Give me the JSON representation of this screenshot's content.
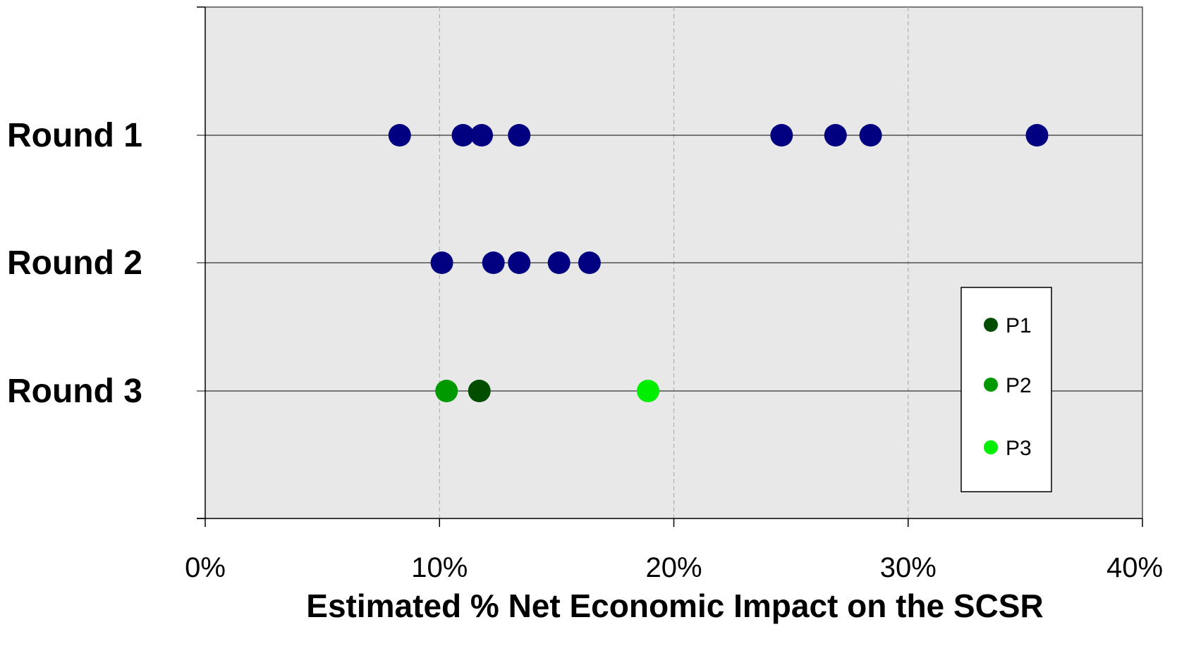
{
  "chart_data": {
    "type": "scatter",
    "title": "",
    "xlabel": "Estimated % Net Economic Impact on the SCSR",
    "ylabel": "",
    "xlim": [
      0,
      40
    ],
    "x_tick_labels": [
      "0%",
      "10%",
      "20%",
      "30%",
      "40%"
    ],
    "categories": [
      "Round 1",
      "Round 2",
      "Round 3"
    ],
    "grid": "vertical dashed at x ticks",
    "legend_position": "right",
    "series": [
      {
        "category": "Round 1",
        "color": "#000080",
        "x": [
          8.3,
          11.0,
          11.8,
          13.4,
          24.6,
          26.9,
          28.4,
          35.5
        ]
      },
      {
        "category": "Round 2",
        "color": "#000080",
        "x": [
          10.1,
          12.3,
          13.4,
          15.1,
          16.4
        ]
      },
      {
        "category": "Round 3",
        "name": "P1",
        "color": "#004d00",
        "x": [
          11.7
        ]
      },
      {
        "category": "Round 3",
        "name": "P2",
        "color": "#009900",
        "x": [
          10.3
        ]
      },
      {
        "category": "Round 3",
        "name": "P3",
        "color": "#00ee00",
        "x": [
          18.9
        ]
      }
    ],
    "legend": [
      {
        "label": "P1",
        "color": "#004d00"
      },
      {
        "label": "P2",
        "color": "#009900"
      },
      {
        "label": "P3",
        "color": "#00ee00"
      }
    ],
    "plot_background": "#e8e8e8"
  }
}
